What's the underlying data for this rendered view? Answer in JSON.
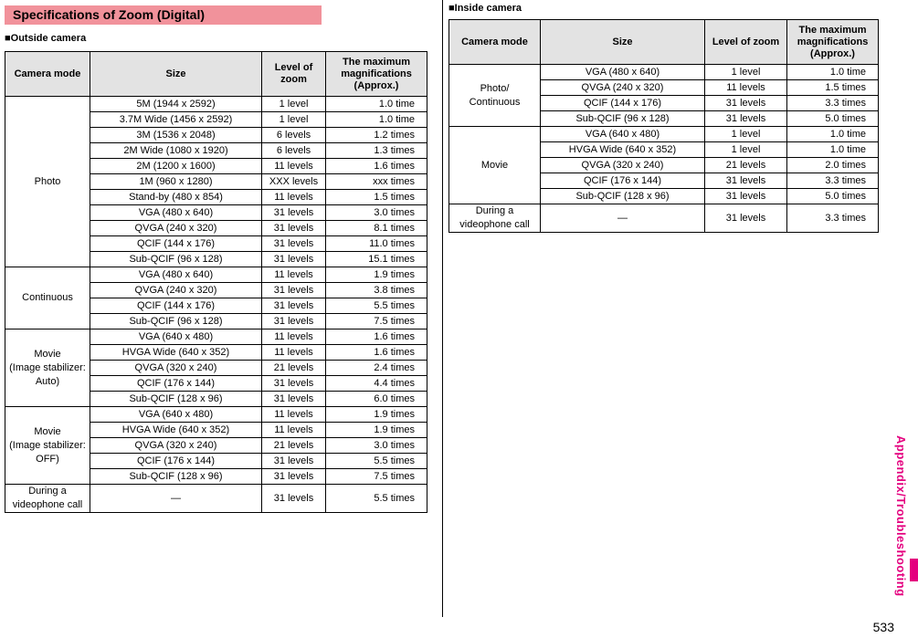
{
  "page": {
    "title": "Specifications of Zoom (Digital)",
    "side_tab": "Appendix/Troubleshooting",
    "page_number": "533"
  },
  "colors": {
    "title_bar_bg": "#f1929b",
    "accent_magenta": "#e4007f",
    "table_header_bg": "#e3e3e3"
  },
  "tables": {
    "outside": {
      "section_label": "■Outside camera",
      "headers": [
        "Camera mode",
        "Size",
        "Level of zoom",
        "The maximum\nmagnifications\n(Approx.)"
      ],
      "groups": [
        {
          "mode": "Photo",
          "rows": [
            [
              "5M (1944 x 2592)",
              "1 level",
              "1.0 time"
            ],
            [
              "3.7M Wide (1456 x 2592)",
              "1 level",
              "1.0 time"
            ],
            [
              "3M (1536 x 2048)",
              "6 levels",
              "1.2 times"
            ],
            [
              "2M Wide (1080 x 1920)",
              "6 levels",
              "1.3 times"
            ],
            [
              "2M (1200 x 1600)",
              "11 levels",
              "1.6 times"
            ],
            [
              "1M (960 x 1280)",
              "XXX levels",
              "xxx times"
            ],
            [
              "Stand-by (480 x 854)",
              "11 levels",
              "1.5 times"
            ],
            [
              "VGA (480 x 640)",
              "31 levels",
              "3.0 times"
            ],
            [
              "QVGA (240 x 320)",
              "31 levels",
              "8.1 times"
            ],
            [
              "QCIF (144 x 176)",
              "31 levels",
              "11.0 times"
            ],
            [
              "Sub-QCIF (96 x 128)",
              "31 levels",
              "15.1 times"
            ]
          ]
        },
        {
          "mode": "Continuous",
          "rows": [
            [
              "VGA (480 x 640)",
              "11 levels",
              "1.9 times"
            ],
            [
              "QVGA (240 x 320)",
              "31 levels",
              "3.8 times"
            ],
            [
              "QCIF (144 x 176)",
              "31 levels",
              "5.5 times"
            ],
            [
              "Sub-QCIF (96 x 128)",
              "31 levels",
              "7.5 times"
            ]
          ]
        },
        {
          "mode": "Movie\n(Image stabilizer:\nAuto)",
          "rows": [
            [
              "VGA (640 x 480)",
              "11 levels",
              "1.6 times"
            ],
            [
              "HVGA Wide (640 x 352)",
              "11 levels",
              "1.6 times"
            ],
            [
              "QVGA (320 x 240)",
              "21 levels",
              "2.4 times"
            ],
            [
              "QCIF (176 x 144)",
              "31 levels",
              "4.4 times"
            ],
            [
              "Sub-QCIF (128 x 96)",
              "31 levels",
              "6.0 times"
            ]
          ]
        },
        {
          "mode": "Movie\n(Image stabilizer:\nOFF)",
          "rows": [
            [
              "VGA (640 x 480)",
              "11 levels",
              "1.9 times"
            ],
            [
              "HVGA Wide (640 x 352)",
              "11 levels",
              "1.9 times"
            ],
            [
              "QVGA (320 x 240)",
              "21 levels",
              "3.0 times"
            ],
            [
              "QCIF (176 x 144)",
              "31 levels",
              "5.5 times"
            ],
            [
              "Sub-QCIF (128 x 96)",
              "31 levels",
              "7.5 times"
            ]
          ]
        },
        {
          "mode": "During a\nvideophone call",
          "rows": [
            [
              "—",
              "31 levels",
              "5.5 times"
            ]
          ]
        }
      ]
    },
    "inside": {
      "section_label": "■Inside camera",
      "headers": [
        "Camera mode",
        "Size",
        "Level of zoom",
        "The maximum\nmagnifications\n(Approx.)"
      ],
      "groups": [
        {
          "mode": "Photo/\nContinuous",
          "rows": [
            [
              "VGA (480 x 640)",
              "1 level",
              "1.0 time"
            ],
            [
              "QVGA (240 x 320)",
              "11 levels",
              "1.5 times"
            ],
            [
              "QCIF (144 x 176)",
              "31 levels",
              "3.3 times"
            ],
            [
              "Sub-QCIF (96 x 128)",
              "31 levels",
              "5.0 times"
            ]
          ]
        },
        {
          "mode": "Movie",
          "rows": [
            [
              "VGA (640 x 480)",
              "1 level",
              "1.0 time"
            ],
            [
              "HVGA Wide (640 x 352)",
              "1 level",
              "1.0 time"
            ],
            [
              "QVGA (320 x 240)",
              "21 levels",
              "2.0 times"
            ],
            [
              "QCIF (176 x 144)",
              "31 levels",
              "3.3 times"
            ],
            [
              "Sub-QCIF (128 x 96)",
              "31 levels",
              "5.0 times"
            ]
          ]
        },
        {
          "mode": "During a\nvideophone call",
          "rows": [
            [
              "—",
              "31 levels",
              "3.3 times"
            ]
          ]
        }
      ]
    }
  }
}
